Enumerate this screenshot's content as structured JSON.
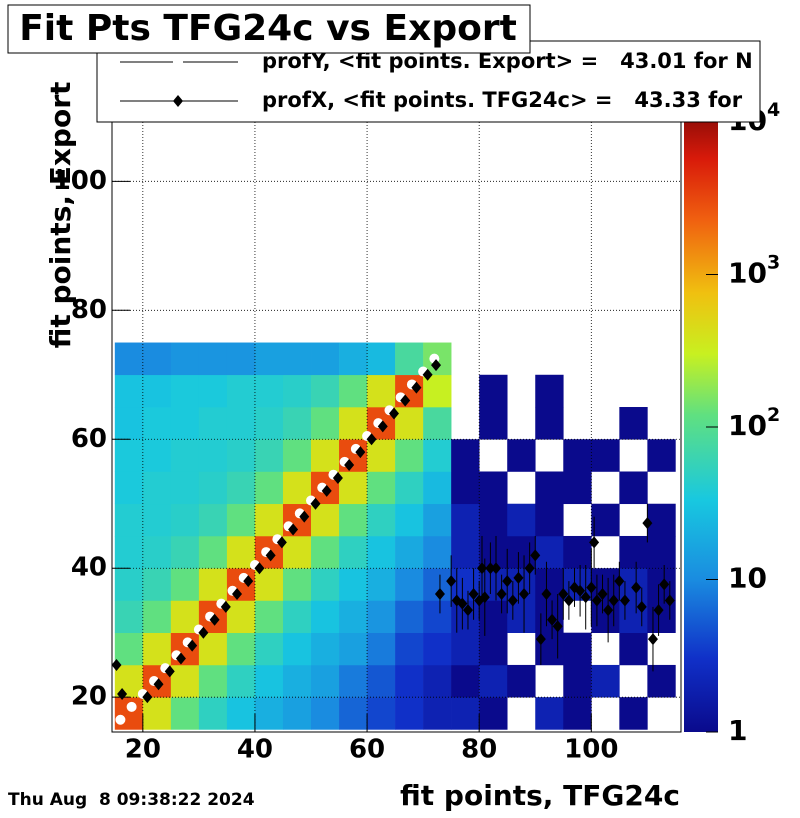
{
  "chart_data": {
    "type": "heatmap",
    "title": "Fit Pts TFG24c vs Export",
    "xlabel": "fit points, TFG24c",
    "ylabel": "fit points, Export",
    "timestamp": "Thu Aug  8 09:38:22 2024",
    "xlim": [
      14.5,
      116
    ],
    "ylim": [
      14.6,
      109.2
    ],
    "xticks": [
      20,
      40,
      60,
      80,
      100
    ],
    "yticks": [
      20,
      40,
      60,
      80,
      100
    ],
    "grid": true,
    "log_z": true,
    "zlim": [
      1,
      10000
    ],
    "zticks": [
      {
        "value": 1,
        "label": "1"
      },
      {
        "value": 10,
        "label": "10"
      },
      {
        "value": 100,
        "label": "10",
        "exponent": "2"
      },
      {
        "value": 1000,
        "label": "10",
        "exponent": "3"
      },
      {
        "value": 10000,
        "label": "10",
        "exponent": "4"
      }
    ],
    "xbins": [
      15,
      20,
      25,
      30,
      35,
      40,
      45,
      50,
      55,
      60,
      65,
      70,
      75,
      80,
      85,
      90,
      95,
      100,
      105,
      110,
      115
    ],
    "ybins": [
      15,
      20,
      25,
      30,
      35,
      40,
      45,
      50,
      55,
      60,
      65,
      70,
      75
    ],
    "z": [
      [
        3000,
        400,
        120,
        50,
        30,
        20,
        15,
        10,
        6,
        4,
        3,
        2,
        2,
        1,
        null,
        2,
        1,
        null,
        1,
        null
      ],
      [
        400,
        3000,
        400,
        120,
        50,
        30,
        20,
        15,
        8,
        5,
        3,
        2,
        1,
        2,
        1,
        null,
        1,
        2,
        null,
        1
      ],
      [
        120,
        400,
        3000,
        400,
        120,
        50,
        30,
        20,
        15,
        8,
        4,
        3,
        2,
        1,
        null,
        1,
        1,
        null,
        1,
        null
      ],
      [
        60,
        120,
        400,
        3000,
        400,
        120,
        50,
        30,
        20,
        12,
        6,
        4,
        2,
        1,
        2,
        1,
        null,
        1,
        2,
        1
      ],
      [
        45,
        60,
        120,
        400,
        3000,
        400,
        120,
        50,
        30,
        20,
        10,
        6,
        3,
        2,
        2,
        1,
        2,
        1,
        2,
        1
      ],
      [
        40,
        45,
        60,
        120,
        400,
        3000,
        400,
        120,
        50,
        30,
        18,
        10,
        2,
        1,
        1,
        2,
        1,
        null,
        1,
        1
      ],
      [
        40,
        40,
        45,
        60,
        120,
        400,
        3000,
        400,
        120,
        50,
        30,
        15,
        2,
        1,
        2,
        1,
        null,
        1,
        null,
        1
      ],
      [
        35,
        40,
        40,
        45,
        60,
        120,
        400,
        3000,
        400,
        120,
        50,
        25,
        1,
        1,
        null,
        1,
        1,
        null,
        1,
        null
      ],
      [
        35,
        35,
        40,
        40,
        45,
        60,
        120,
        400,
        3000,
        400,
        120,
        40,
        1,
        null,
        1,
        null,
        1,
        1,
        null,
        1
      ],
      [
        30,
        35,
        35,
        40,
        40,
        45,
        60,
        120,
        400,
        3000,
        400,
        80,
        null,
        1,
        null,
        1,
        null,
        null,
        1,
        null
      ],
      [
        30,
        30,
        35,
        35,
        40,
        40,
        45,
        60,
        120,
        400,
        3000,
        300,
        null,
        1,
        null,
        1,
        null,
        null,
        null,
        null
      ],
      [
        10,
        10,
        12,
        12,
        12,
        15,
        15,
        15,
        20,
        25,
        80,
        150,
        null,
        null,
        null,
        null,
        null,
        null,
        null,
        null
      ]
    ],
    "series": [
      {
        "name": "profY, <fit points. Export> =   43.01 for N",
        "color": "#ffffff",
        "marker": "circle",
        "x": [
          16,
          18,
          20,
          22,
          24,
          26,
          28,
          30,
          32,
          34,
          36,
          38,
          40,
          42,
          44,
          46,
          48,
          50,
          52,
          54,
          56,
          58,
          60,
          62,
          64,
          66,
          68,
          70,
          72
        ],
        "y": [
          16.5,
          18.5,
          20.5,
          22.5,
          24.5,
          26.5,
          28.5,
          30.5,
          32.5,
          34.5,
          36.5,
          38.5,
          40.5,
          42.5,
          44.5,
          46.5,
          48.5,
          50.5,
          52.5,
          54.5,
          56.5,
          58.5,
          60.5,
          62.5,
          64.5,
          66.5,
          68.5,
          70.5,
          72.5
        ]
      },
      {
        "name": "profX, <fit points. TFG24c> =   43.33 for",
        "color": "#000000",
        "marker": "diamond",
        "x": [
          15.3,
          16.3,
          20.8,
          22.8,
          24.8,
          26.8,
          28.8,
          30.8,
          32.8,
          34.8,
          36.8,
          38.8,
          40.8,
          42.8,
          44.8,
          46.8,
          48.8,
          50.8,
          52.8,
          54.8,
          56.8,
          58.8,
          60.8,
          62.8,
          64.8,
          66.8,
          68.8,
          70.8,
          72.3,
          73,
          75,
          76,
          77,
          78,
          79,
          80,
          80.5,
          81,
          82,
          83,
          84,
          85,
          86,
          87,
          88,
          89,
          90,
          91,
          92,
          93,
          94,
          95,
          96,
          97,
          98,
          99,
          100,
          100.5,
          101,
          102,
          103,
          104,
          105,
          106,
          108,
          109,
          110,
          111,
          112,
          113,
          114
        ],
        "y": [
          25,
          20.5,
          20,
          22,
          24,
          26,
          28,
          30,
          32,
          34,
          36,
          38,
          40,
          42,
          44,
          46,
          48,
          50,
          52,
          54,
          56,
          58,
          60,
          62,
          64,
          66,
          68,
          70,
          71.5,
          36,
          38,
          35,
          34.5,
          33.5,
          36,
          35,
          40,
          35.5,
          40,
          40,
          36,
          38,
          35,
          38.5,
          36,
          40,
          42,
          29,
          36,
          32,
          31,
          36,
          35,
          37,
          36.5,
          35.5,
          37,
          44,
          35,
          36,
          33.5,
          35,
          38,
          35,
          37,
          34,
          47,
          29,
          33.5,
          37.5,
          35
        ],
        "yerr": [
          null,
          null,
          null,
          null,
          null,
          null,
          null,
          null,
          null,
          null,
          null,
          null,
          null,
          null,
          null,
          null,
          null,
          null,
          null,
          null,
          null,
          null,
          null,
          null,
          null,
          null,
          null,
          null,
          null,
          3,
          4,
          5,
          4,
          3,
          4,
          3,
          5,
          6,
          4,
          5,
          3,
          5,
          3,
          4,
          6,
          4,
          3,
          4,
          5,
          3,
          5,
          4,
          3,
          3,
          4,
          5,
          6,
          4,
          4,
          3,
          5,
          4,
          3,
          3,
          4,
          3,
          3,
          5,
          4,
          3,
          3
        ]
      }
    ]
  }
}
